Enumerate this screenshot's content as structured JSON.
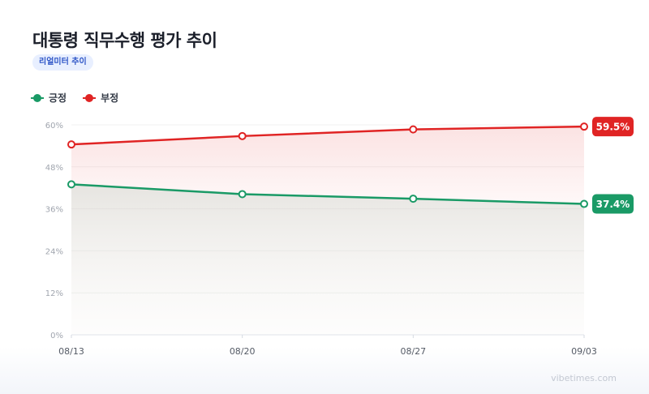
{
  "title": "대통령 직무수행 평가 추이",
  "badge": "리얼미터 추이",
  "watermark": "vibetimes.com",
  "colors": {
    "positive": "#1a9a66",
    "negative": "#e02424"
  },
  "chart_data": {
    "type": "line",
    "title": "대통령 직무수행 평가 추이",
    "categories": [
      "08/13",
      "08/20",
      "08/27",
      "09/03"
    ],
    "series": [
      {
        "name": "긍정",
        "values": [
          43.0,
          40.2,
          38.9,
          37.4
        ],
        "end_label": "37.4%"
      },
      {
        "name": "부정",
        "values": [
          54.4,
          56.8,
          58.7,
          59.5
        ],
        "end_label": "59.5%"
      }
    ],
    "yticks": [
      "0%",
      "12%",
      "24%",
      "36%",
      "48%",
      "60%"
    ],
    "ylim": [
      0,
      60
    ],
    "grid": true,
    "legend": "top-left"
  }
}
